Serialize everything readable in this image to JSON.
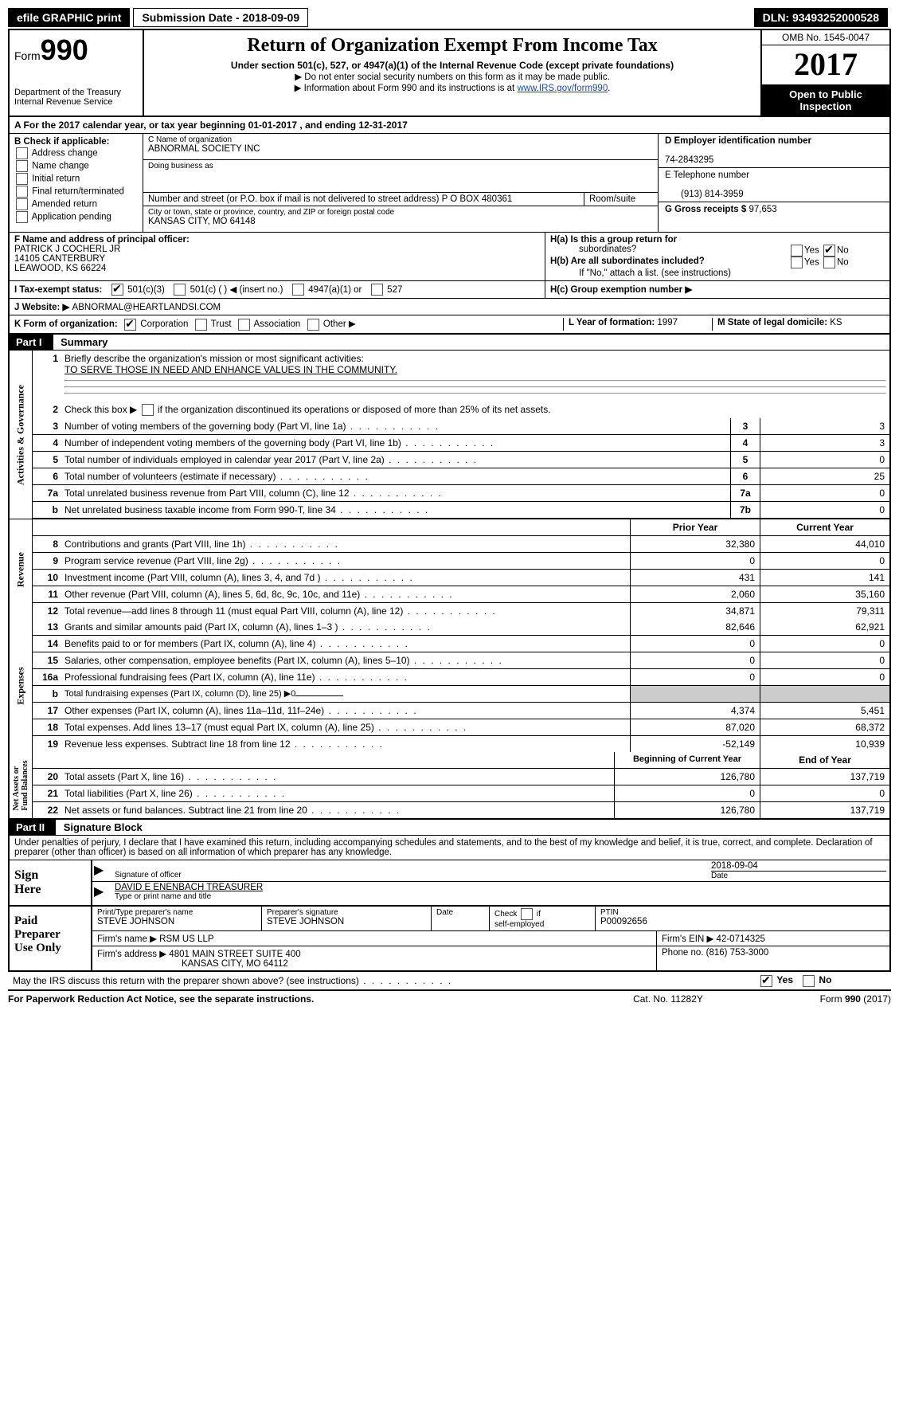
{
  "topbar": {
    "efile": "efile GRAPHIC print",
    "sub_label": "Submission Date - ",
    "sub_date": "2018-09-09",
    "dln_label": "DLN: ",
    "dln": "93493252000528"
  },
  "header": {
    "form_word": "Form",
    "form_num": "990",
    "dept": "Department of the Treasury",
    "irs": "Internal Revenue Service",
    "title": "Return of Organization Exempt From Income Tax",
    "subtitle": "Under section 501(c), 527, or 4947(a)(1) of the Internal Revenue Code (except private foundations)",
    "note1": "▶ Do not enter social security numbers on this form as it may be made public.",
    "note2_pre": "▶ Information about Form 990 and its instructions is at ",
    "note2_link": "www.IRS.gov/form990",
    "omb": "OMB No. 1545-0047",
    "year": "2017",
    "open1": "Open to Public",
    "open2": "Inspection"
  },
  "section_a": {
    "text_pre": "A  For the 2017 calendar year, or tax year beginning ",
    "begin": "01-01-2017",
    "mid": "   , and ending ",
    "end": "12-31-2017"
  },
  "box_b": {
    "title": "B Check if applicable:",
    "opts": [
      "Address change",
      "Name change",
      "Initial return",
      "Final return/terminated",
      "Amended return",
      "Application pending"
    ]
  },
  "box_c": {
    "name_lbl": "C Name of organization",
    "name": "ABNORMAL SOCIETY INC",
    "dba_lbl": "Doing business as",
    "addr_lbl": "Number and street (or P.O. box if mail is not delivered to street address)",
    "room_lbl": "Room/suite",
    "addr": "P O BOX 480361",
    "city_lbl": "City or town, state or province, country, and ZIP or foreign postal code",
    "city": "KANSAS CITY, MO  64148"
  },
  "box_d": {
    "ein_lbl": "D Employer identification number",
    "ein": "74-2843295",
    "tel_lbl": "E Telephone number",
    "tel": "(913) 814-3959",
    "gross_lbl": "G Gross receipts $ ",
    "gross": "97,653"
  },
  "box_f": {
    "lbl": "F  Name and address of principal officer:",
    "line1": "PATRICK J COCHERL JR",
    "line2": "14105 CANTERBURY",
    "line3": "LEAWOOD, KS  66224"
  },
  "box_h": {
    "ha": "H(a)  Is this a group return for",
    "ha2": "subordinates?",
    "hb": "H(b)  Are all subordinates included?",
    "hb2": "If \"No,\" attach a list. (see instructions)",
    "hc": "H(c)  Group exemption number ▶"
  },
  "tax_exempt": {
    "lbl": "I  Tax-exempt status:",
    "o1": "501(c)(3)",
    "o2": "501(c) (   ) ◀ (insert no.)",
    "o3": "4947(a)(1) or",
    "o4": "527"
  },
  "website": {
    "lbl": "J  Website: ▶ ",
    "val": "ABNORMAL@HEARTLANDSI.COM"
  },
  "k_row": {
    "lbl": "K Form of organization:",
    "o1": "Corporation",
    "o2": "Trust",
    "o3": "Association",
    "o4": "Other ▶",
    "l_lbl": "L Year of formation: ",
    "l_val": "1997",
    "m_lbl": "M State of legal domicile: ",
    "m_val": "KS"
  },
  "part1": {
    "hdr": "Part I",
    "title": "Summary",
    "line1_lbl": "Briefly describe the organization's mission or most significant activities:",
    "line1_val": "TO SERVE THOSE IN NEED AND ENHANCE VALUES IN THE COMMUNITY.",
    "line2": "Check this box ▶  if the organization discontinued its operations or disposed of more than 25% of its net assets.",
    "rows_gov": [
      {
        "n": "3",
        "d": "Number of voting members of the governing body (Part VI, line 1a)",
        "b": "3",
        "v": "3"
      },
      {
        "n": "4",
        "d": "Number of independent voting members of the governing body (Part VI, line 1b)",
        "b": "4",
        "v": "3"
      },
      {
        "n": "5",
        "d": "Total number of individuals employed in calendar year 2017 (Part V, line 2a)",
        "b": "5",
        "v": "0"
      },
      {
        "n": "6",
        "d": "Total number of volunteers (estimate if necessary)",
        "b": "6",
        "v": "25"
      },
      {
        "n": "7a",
        "d": "Total unrelated business revenue from Part VIII, column (C), line 12",
        "b": "7a",
        "v": "0"
      },
      {
        "n": "b",
        "d": "Net unrelated business taxable income from Form 990-T, line 34",
        "b": "7b",
        "v": "0"
      }
    ],
    "col_hdr_prior": "Prior Year",
    "col_hdr_curr": "Current Year",
    "revenue": [
      {
        "n": "8",
        "d": "Contributions and grants (Part VIII, line 1h)",
        "p": "32,380",
        "c": "44,010"
      },
      {
        "n": "9",
        "d": "Program service revenue (Part VIII, line 2g)",
        "p": "0",
        "c": "0"
      },
      {
        "n": "10",
        "d": "Investment income (Part VIII, column (A), lines 3, 4, and 7d )",
        "p": "431",
        "c": "141"
      },
      {
        "n": "11",
        "d": "Other revenue (Part VIII, column (A), lines 5, 6d, 8c, 9c, 10c, and 11e)",
        "p": "2,060",
        "c": "35,160"
      },
      {
        "n": "12",
        "d": "Total revenue—add lines 8 through 11 (must equal Part VIII, column (A), line 12)",
        "p": "34,871",
        "c": "79,311"
      }
    ],
    "expenses": [
      {
        "n": "13",
        "d": "Grants and similar amounts paid (Part IX, column (A), lines 1–3 )",
        "p": "82,646",
        "c": "62,921"
      },
      {
        "n": "14",
        "d": "Benefits paid to or for members (Part IX, column (A), line 4)",
        "p": "0",
        "c": "0"
      },
      {
        "n": "15",
        "d": "Salaries, other compensation, employee benefits (Part IX, column (A), lines 5–10)",
        "p": "0",
        "c": "0"
      },
      {
        "n": "16a",
        "d": "Professional fundraising fees (Part IX, column (A), line 11e)",
        "p": "0",
        "c": "0"
      },
      {
        "n": "b",
        "d": "Total fundraising expenses (Part IX, column (D), line 25) ▶0",
        "p": "SHADE",
        "c": "SHADE"
      },
      {
        "n": "17",
        "d": "Other expenses (Part IX, column (A), lines 11a–11d, 11f–24e)",
        "p": "4,374",
        "c": "5,451"
      },
      {
        "n": "18",
        "d": "Total expenses. Add lines 13–17 (must equal Part IX, column (A), line 25)",
        "p": "87,020",
        "c": "68,372"
      },
      {
        "n": "19",
        "d": "Revenue less expenses. Subtract line 18 from line 12",
        "p": "-52,149",
        "c": "10,939"
      }
    ],
    "col_hdr_begin": "Beginning of Current Year",
    "col_hdr_end": "End of Year",
    "netassets": [
      {
        "n": "20",
        "d": "Total assets (Part X, line 16)",
        "p": "126,780",
        "c": "137,719"
      },
      {
        "n": "21",
        "d": "Total liabilities (Part X, line 26)",
        "p": "0",
        "c": "0"
      },
      {
        "n": "22",
        "d": "Net assets or fund balances. Subtract line 21 from line 20",
        "p": "126,780",
        "c": "137,719"
      }
    ],
    "side_gov": "Activities & Governance",
    "side_rev": "Revenue",
    "side_exp": "Expenses",
    "side_net": "Net Assets or\nFund Balances"
  },
  "part2": {
    "hdr": "Part II",
    "title": "Signature Block",
    "declaration": "Under penalties of perjury, I declare that I have examined this return, including accompanying schedules and statements, and to the best of my knowledge and belief, it is true, correct, and complete. Declaration of preparer (other than officer) is based on all information of which preparer has any knowledge.",
    "sign_here": "Sign Here",
    "sig_officer_lbl": "Signature of officer",
    "sig_date": "2018-09-04",
    "date_lbl": "Date",
    "typed_name": "DAVID E ENENBACH TREASURER",
    "typed_lbl": "Type or print name and title",
    "paid_prep": "Paid Preparer Use Only",
    "prep_name_lbl": "Print/Type preparer's name",
    "prep_name": "STEVE JOHNSON",
    "prep_sig_lbl": "Preparer's signature",
    "prep_sig": "STEVE JOHNSON",
    "prep_date_lbl": "Date",
    "check_if": "Check         if self-employed",
    "ptin_lbl": "PTIN",
    "ptin": "P00092656",
    "firm_name_lbl": "Firm's name      ▶ ",
    "firm_name": "RSM US LLP",
    "firm_ein_lbl": "Firm's EIN ▶ ",
    "firm_ein": "42-0714325",
    "firm_addr_lbl": "Firm's address ▶",
    "firm_addr1": "4801 MAIN STREET SUITE 400",
    "firm_addr2": "KANSAS CITY, MO  64112",
    "firm_phone_lbl": "Phone no. ",
    "firm_phone": "(816) 753-3000",
    "discuss": "May the IRS discuss this return with the preparer shown above? (see instructions)",
    "yes": "Yes",
    "no": "No"
  },
  "footer": {
    "paperwork": "For Paperwork Reduction Act Notice, see the separate instructions.",
    "cat": "Cat. No. 11282Y",
    "form": "Form 990 (2017)"
  }
}
